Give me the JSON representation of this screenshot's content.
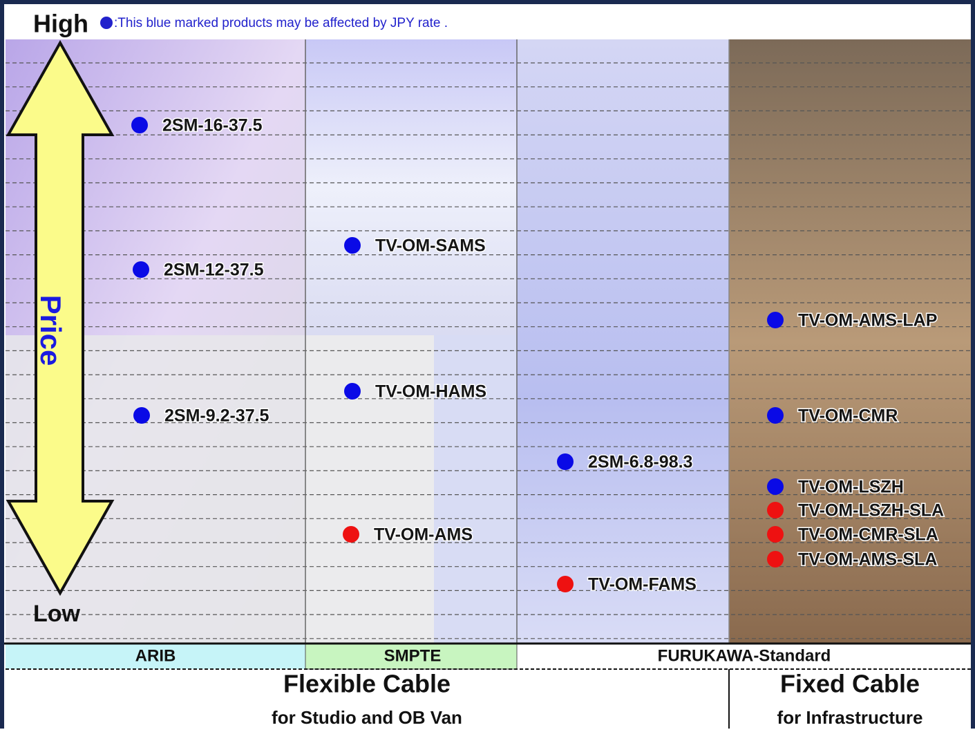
{
  "header": {
    "high": "High",
    "note": ":This blue marked products may be affected by JPY rate .",
    "note_color": "#2222cc"
  },
  "axis": {
    "price": "Price",
    "low": "Low"
  },
  "columns": [
    "ARIB",
    "SMPTE",
    "FURUKAWA-Standard"
  ],
  "products": [
    {
      "label": "2SM-16-37.5",
      "color": "#0a0ae6"
    },
    {
      "label": "2SM-12-37.5",
      "color": "#0a0ae6"
    },
    {
      "label": "2SM-9.2-37.5",
      "color": "#0a0ae6"
    },
    {
      "label": "TV-OM-SAMS",
      "color": "#0a0ae6"
    },
    {
      "label": "TV-OM-HAMS",
      "color": "#0a0ae6"
    },
    {
      "label": "TV-OM-AMS",
      "color": "#ee1111"
    },
    {
      "label": "2SM-6.8-98.3",
      "color": "#0a0ae6"
    },
    {
      "label": "TV-OM-FAMS",
      "color": "#ee1111"
    },
    {
      "label": "TV-OM-AMS-LAP",
      "color": "#0a0ae6"
    },
    {
      "label": "TV-OM-CMR",
      "color": "#0a0ae6"
    },
    {
      "label": "TV-OM-LSZH",
      "color": "#0a0ae6"
    },
    {
      "label": "TV-OM-LSZH-SLA",
      "color": "#ee1111"
    },
    {
      "label": "TV-OM-CMR-SLA",
      "color": "#ee1111"
    },
    {
      "label": "TV-OM-AMS-SLA",
      "color": "#ee1111"
    }
  ],
  "footer": {
    "flexible": {
      "title": "Flexible Cable",
      "subtitle": "for Studio and OB Van"
    },
    "fixed": {
      "title": "Fixed Cable",
      "subtitle": "for Infrastructure"
    }
  }
}
